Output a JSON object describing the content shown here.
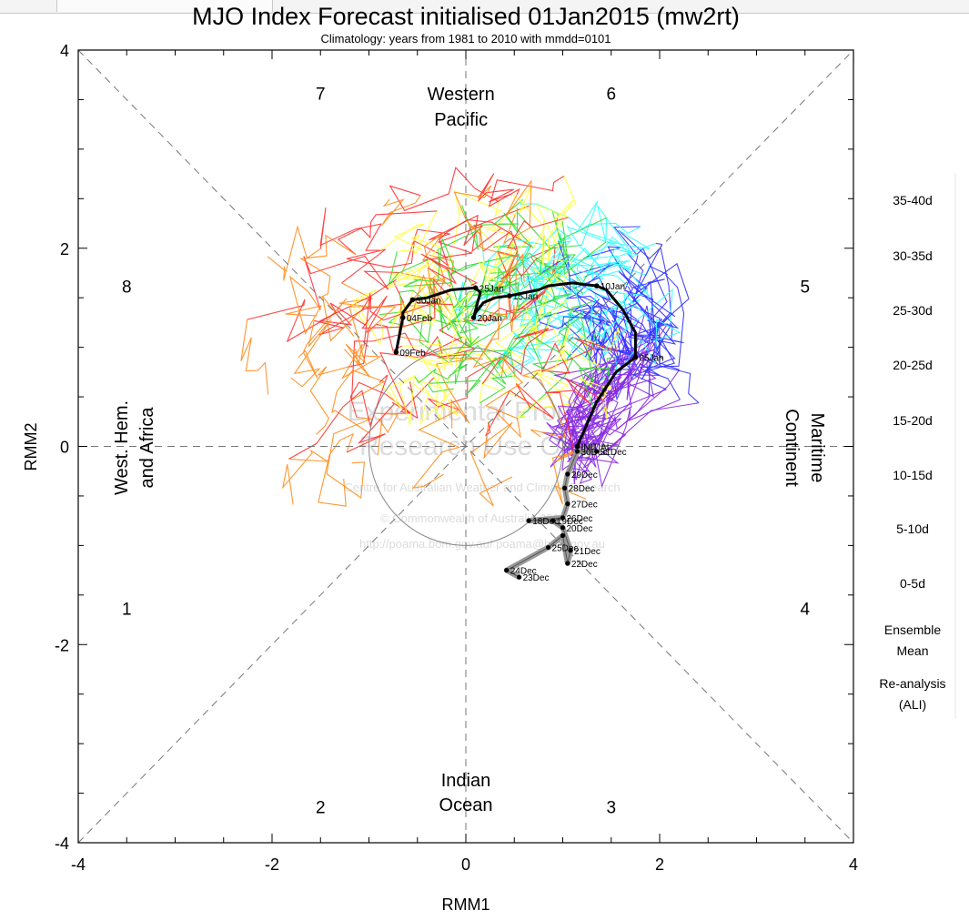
{
  "chart_data": {
    "type": "scatter",
    "title": "MJO Index Forecast initialised 01Jan2015 (mw2rt)",
    "subtitle": "Climatology: years from 1981 to 2010 with mmdd=0101",
    "xlabel": "RMM1",
    "ylabel": "RMM2",
    "xlim": [
      -4,
      4
    ],
    "ylim": [
      -4,
      4
    ],
    "xticks": [
      -4,
      -2,
      0,
      2,
      4
    ],
    "yticks": [
      -4,
      -2,
      0,
      2,
      4
    ],
    "xtick_labels": [
      "-4",
      "-2",
      "0",
      "2",
      "4"
    ],
    "ytick_labels": [
      "-4",
      "-2",
      "0",
      "2",
      "4"
    ],
    "phases": [
      {
        "label": "1",
        "x": -3.5,
        "y": -1.7
      },
      {
        "label": "2",
        "x": -1.5,
        "y": -3.7
      },
      {
        "label": "3",
        "x": 1.5,
        "y": -3.7
      },
      {
        "label": "4",
        "x": 3.5,
        "y": -1.7
      },
      {
        "label": "5",
        "x": 3.5,
        "y": 1.55
      },
      {
        "label": "6",
        "x": 1.5,
        "y": 3.5
      },
      {
        "label": "7",
        "x": -1.5,
        "y": 3.5
      },
      {
        "label": "8",
        "x": -3.5,
        "y": 1.55
      }
    ],
    "regions": {
      "top": [
        "Western",
        "Pacific"
      ],
      "bottom": [
        "Indian",
        "Ocean"
      ],
      "left": [
        "West. Hem.",
        "and Africa"
      ],
      "right": [
        "Maritime",
        "Continent"
      ]
    },
    "watermark": [
      "Experimental Product",
      "Research Use Only",
      "Centre for Australian Weather and Climate Research",
      "© Commonwealth of Australia 2014",
      "http://poama.bom.gov.au/    poama@bom.gov.au"
    ],
    "legend": {
      "placement": "right",
      "entries": [
        {
          "label": "35-40d",
          "color": "#ff8c1a"
        },
        {
          "label": "30-35d",
          "color": "#ff3030"
        },
        {
          "label": "25-30d",
          "color": "#ffff40"
        },
        {
          "label": "20-25d",
          "color": "#33dd33"
        },
        {
          "label": "15-20d",
          "color": "#33ffff"
        },
        {
          "label": "10-15d",
          "color": "#3333ff"
        },
        {
          "label": "5-10d",
          "color": "#8a2be2"
        },
        {
          "label": "0-5d",
          "color": "#8a2be2"
        },
        {
          "label": "Ensemble Mean",
          "color": "#000000"
        },
        {
          "label": "Re-analysis (ALI)",
          "color": "#9a9a9a"
        }
      ]
    },
    "ensemble_mean": {
      "name": "Ensemble Mean",
      "color": "#000000",
      "points": [
        {
          "x": 1.15,
          "y": 0.0,
          "label": "INITIAL"
        },
        {
          "x": 1.35,
          "y": 0.45
        },
        {
          "x": 1.55,
          "y": 0.75
        },
        {
          "x": 1.75,
          "y": 0.9,
          "label": "05Jan"
        },
        {
          "x": 1.75,
          "y": 1.15
        },
        {
          "x": 1.62,
          "y": 1.38
        },
        {
          "x": 1.45,
          "y": 1.58
        },
        {
          "x": 1.35,
          "y": 1.62,
          "label": "10Jan"
        },
        {
          "x": 1.1,
          "y": 1.65
        },
        {
          "x": 0.85,
          "y": 1.62
        },
        {
          "x": 0.75,
          "y": 1.58
        },
        {
          "x": 0.45,
          "y": 1.52,
          "label": "15Jan"
        },
        {
          "x": 0.3,
          "y": 1.5
        },
        {
          "x": 0.18,
          "y": 1.45
        },
        {
          "x": 0.1,
          "y": 1.35
        },
        {
          "x": 0.08,
          "y": 1.3,
          "label": "20Jan"
        },
        {
          "x": 0.12,
          "y": 1.45
        },
        {
          "x": 0.15,
          "y": 1.55
        },
        {
          "x": 0.1,
          "y": 1.6,
          "label": "25Jan"
        },
        {
          "x": -0.15,
          "y": 1.58
        },
        {
          "x": -0.4,
          "y": 1.5
        },
        {
          "x": -0.55,
          "y": 1.48,
          "label": "30Jan"
        },
        {
          "x": -0.65,
          "y": 1.35
        },
        {
          "x": -0.65,
          "y": 1.3,
          "label": "04Feb"
        },
        {
          "x": -0.7,
          "y": 1.05
        },
        {
          "x": -0.72,
          "y": 0.95,
          "label": "09Feb"
        }
      ]
    },
    "reanalysis": {
      "name": "Re-analysis (ALI)",
      "color": "#9a9a9a",
      "points": [
        {
          "x": 0.55,
          "y": -1.32,
          "label": "23Dec"
        },
        {
          "x": 0.42,
          "y": -1.25,
          "label": "24Dec"
        },
        {
          "x": 0.85,
          "y": -1.02,
          "label": "25Dec"
        },
        {
          "x": 1.0,
          "y": -0.9
        },
        {
          "x": 1.05,
          "y": -1.18,
          "label": "22Dec"
        },
        {
          "x": 1.08,
          "y": -1.05,
          "label": "21Dec"
        },
        {
          "x": 1.0,
          "y": -0.82,
          "label": "20Dec"
        },
        {
          "x": 0.9,
          "y": -0.75,
          "label": "19Dec"
        },
        {
          "x": 0.65,
          "y": -0.75,
          "label": "18Dec"
        },
        {
          "x": 1.0,
          "y": -0.72,
          "label": "26Dec"
        },
        {
          "x": 1.05,
          "y": -0.58,
          "label": "27Dec"
        },
        {
          "x": 1.02,
          "y": -0.42,
          "label": "28Dec"
        },
        {
          "x": 1.05,
          "y": -0.28,
          "label": "29Dec"
        },
        {
          "x": 1.15,
          "y": -0.05,
          "label": "30Dec"
        },
        {
          "x": 1.35,
          "y": -0.05,
          "label": "31Dec"
        }
      ]
    },
    "ensemble_colors": [
      "#ff8c1a",
      "#ff3030",
      "#ffff40",
      "#33dd33",
      "#33ffff",
      "#3333ff",
      "#8a2be2"
    ]
  }
}
